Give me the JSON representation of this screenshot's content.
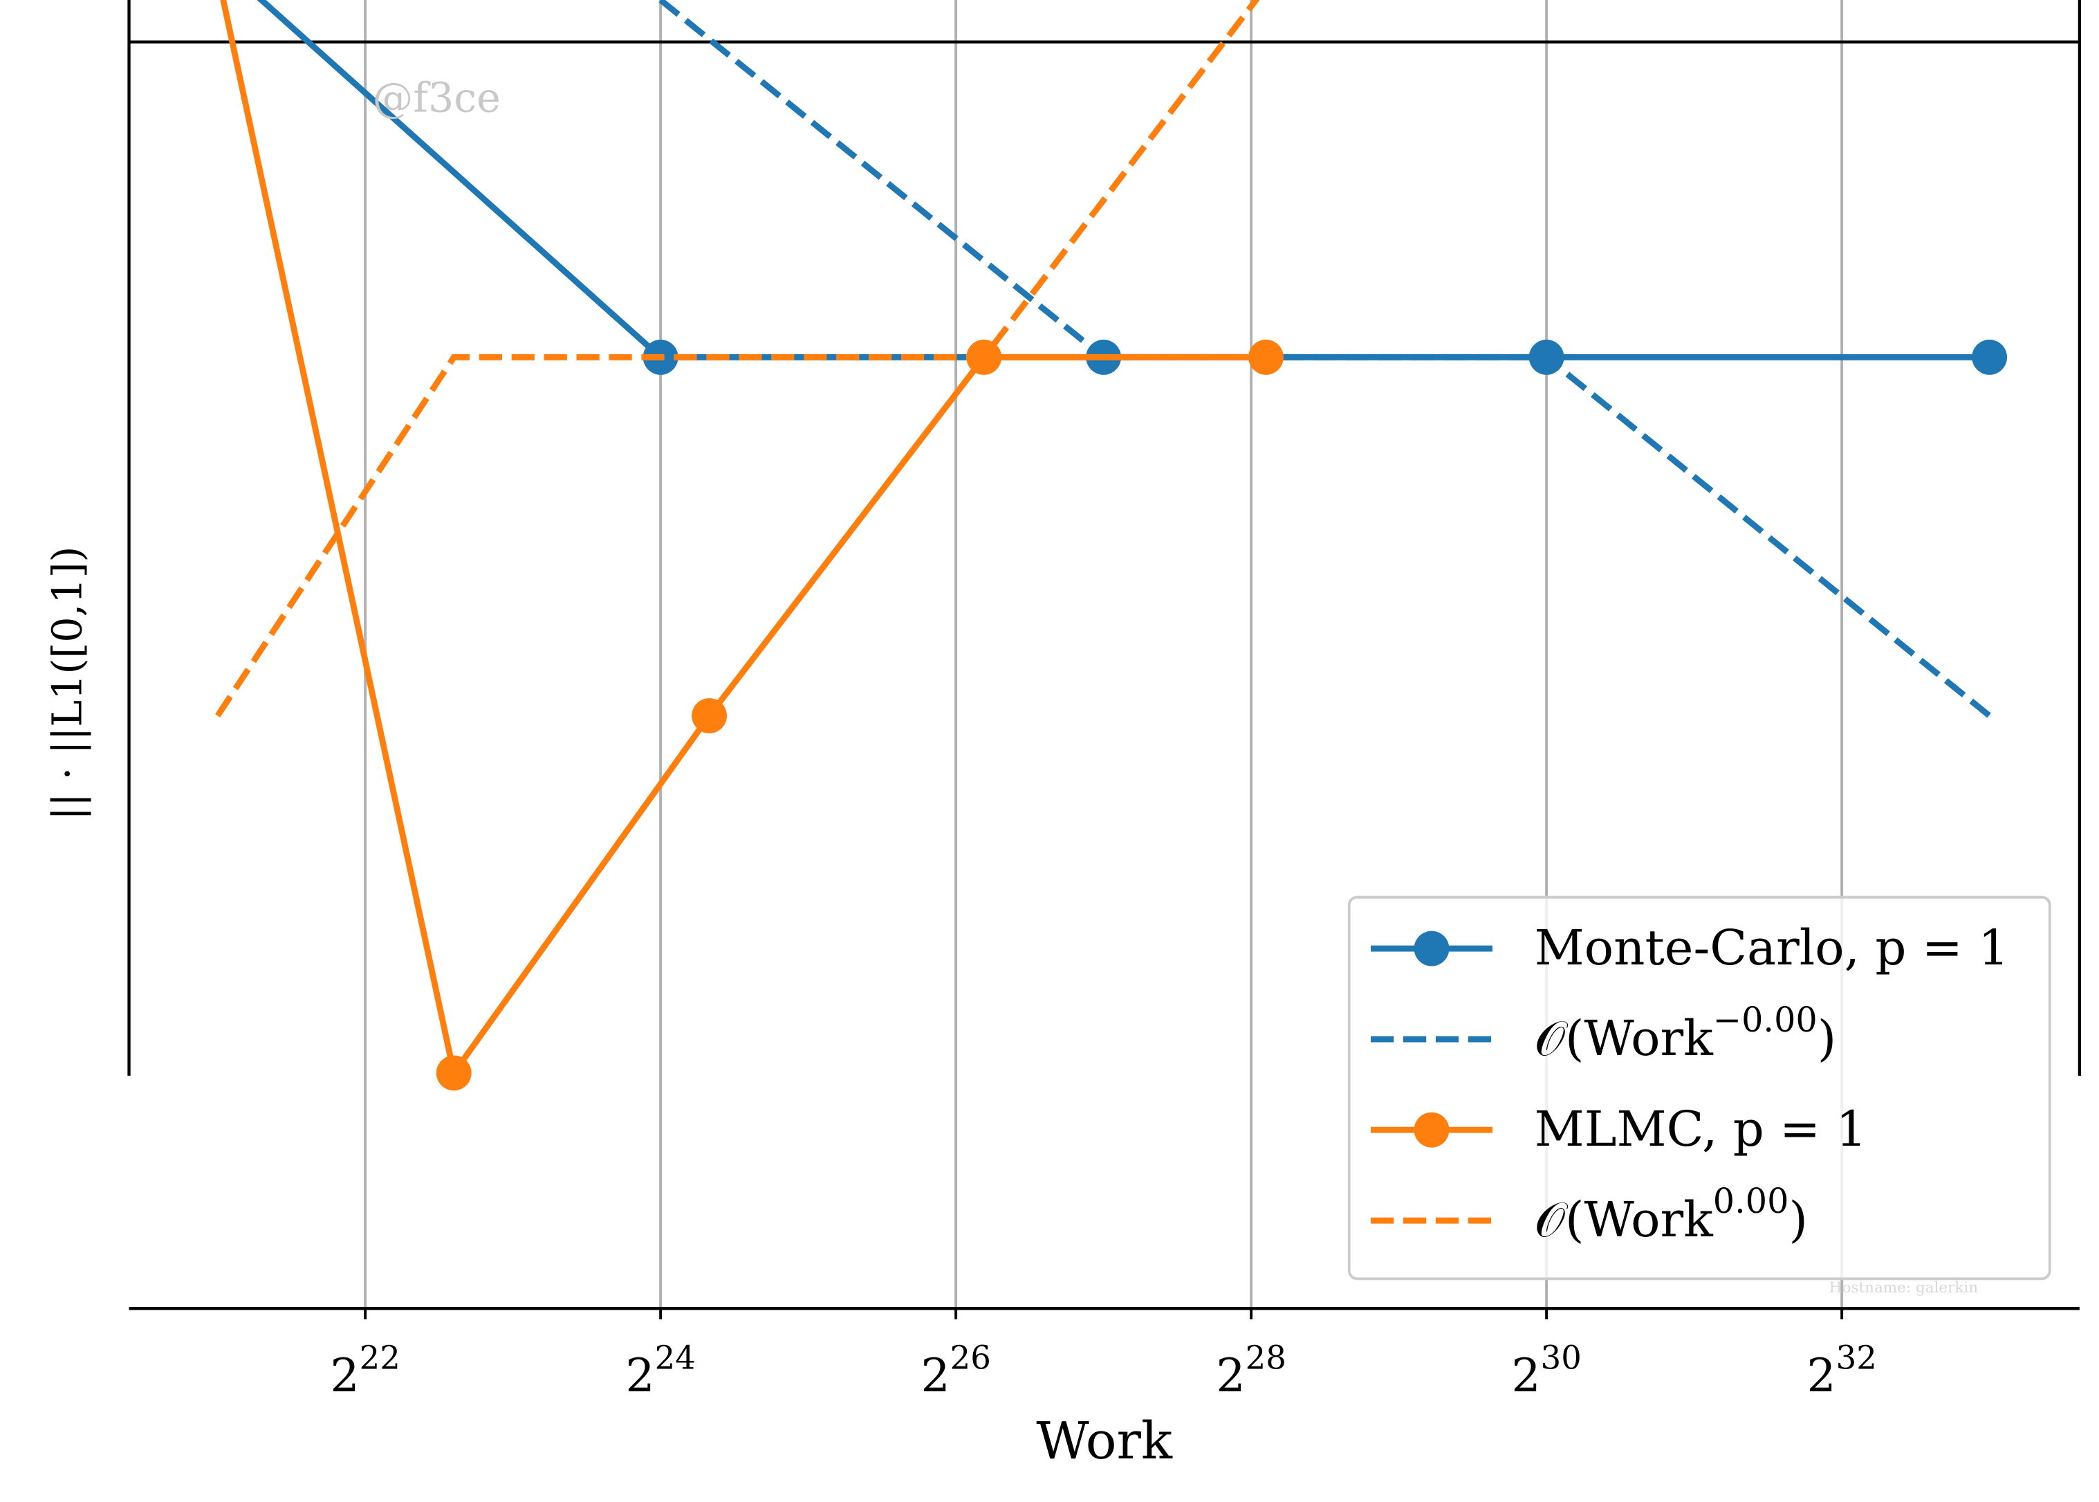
{
  "chart_data": {
    "type": "line",
    "xlabel": "Work",
    "ylabel": "|| · ||L1([0,1])",
    "xscale": "log",
    "xbase": 2,
    "xlim": [
      1383600,
      13111000000
    ],
    "ylim": [
      0,
      1
    ],
    "xticks": [
      {
        "value": 4194304,
        "label": "2^22"
      },
      {
        "value": 16777216,
        "label": "2^24"
      },
      {
        "value": 67108864,
        "label": "2^26"
      },
      {
        "value": 268435456,
        "label": "2^28"
      },
      {
        "value": 1073741824,
        "label": "2^30"
      },
      {
        "value": 4294967296,
        "label": "2^32"
      }
    ],
    "grid": true,
    "legend": "lower right",
    "series": [
      {
        "name": "Monte-Carlo, p = 1",
        "color": "#1f77b4",
        "linestyle": "solid",
        "marker": "o",
        "x": [
          2097152,
          16777216,
          134217728,
          1073741824,
          8589934592
        ],
        "values": [
          1.03,
          0.727,
          0.727,
          0.727,
          0.727
        ]
      },
      {
        "name": "𝒪(Work^−0.00)",
        "color": "#1f77b4",
        "linestyle": "dashed",
        "marker": "none",
        "x": [
          16777216,
          134217728,
          1073741824,
          8589934592
        ],
        "values": [
          1.0,
          0.727,
          0.727,
          0.453
        ]
      },
      {
        "name": "MLMC, p = 1",
        "color": "#ff7f0e",
        "linestyle": "solid",
        "marker": "o",
        "x": [
          2097152,
          6357500,
          21089000,
          76558000,
          287710000
        ],
        "values": [
          1.02,
          0.18,
          0.453,
          0.727,
          0.727
        ]
      },
      {
        "name": "𝒪(Work^0.00)",
        "color": "#ff7f0e",
        "linestyle": "dashed",
        "marker": "none",
        "x": [
          2097152,
          6357500,
          21089000,
          76558000,
          287710000
        ],
        "values": [
          0.453,
          0.727,
          0.727,
          0.727,
          1.01
        ]
      }
    ],
    "watermark": "@f3ce",
    "footer": "Hostname: galerkin"
  }
}
